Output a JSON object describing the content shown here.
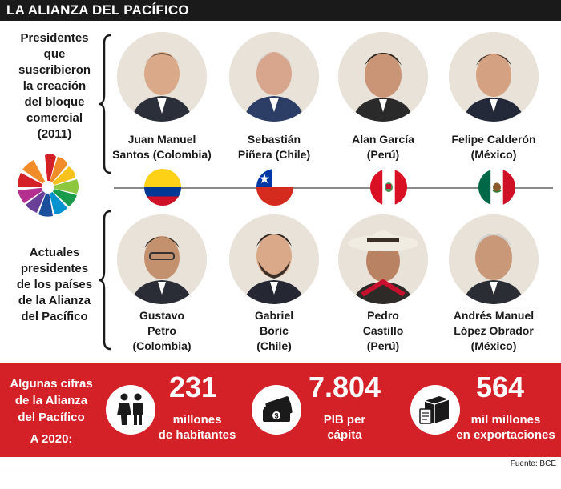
{
  "header": {
    "title": "LA ALIANZA DEL PACÍFICO"
  },
  "founders": {
    "label": [
      "Presidentes",
      "que suscribieron",
      "la creación",
      "del bloque",
      "comercial",
      "(2011)"
    ],
    "people": [
      {
        "name": [
          "Juan Manuel",
          "Santos (Colombia)"
        ]
      },
      {
        "name": [
          "Sebastián",
          "Piñera (Chile)"
        ]
      },
      {
        "name": [
          "Alan García",
          "(Perú)"
        ]
      },
      {
        "name": [
          "Felipe Calderón",
          "(México)"
        ]
      }
    ]
  },
  "current": {
    "label": [
      "Actuales",
      "presidentes",
      "de los países",
      "de la Alianza",
      "del Pacífico"
    ],
    "people": [
      {
        "name": [
          "Gustavo",
          "Petro",
          "(Colombia)"
        ]
      },
      {
        "name": [
          "Gabriel",
          "Boric",
          "(Chile)"
        ]
      },
      {
        "name": [
          "Pedro",
          "Castillo",
          "(Perú)"
        ]
      },
      {
        "name": [
          "Andrés Manuel",
          "López Obrador",
          "(México)"
        ]
      }
    ]
  },
  "flags": [
    {
      "country": "Colombia",
      "colors": [
        "#fcd116",
        "#003893",
        "#ce1126"
      ]
    },
    {
      "country": "Chile",
      "colors": [
        "#0039a6",
        "#ffffff",
        "#d52b1e"
      ]
    },
    {
      "country": "Perú",
      "colors": [
        "#d91023",
        "#ffffff",
        "#d91023"
      ]
    },
    {
      "country": "México",
      "colors": [
        "#006847",
        "#ffffff",
        "#ce1126"
      ]
    }
  ],
  "stats": {
    "lead": [
      "Algunas cifras",
      "de la Alianza",
      "del Pacífico",
      "A 2020:"
    ],
    "items": [
      {
        "icon": "people-icon",
        "value": "231",
        "desc": [
          "millones",
          "de habitantes"
        ]
      },
      {
        "icon": "money-icon",
        "value": "7.804",
        "desc": [
          "PIB per",
          "cápita"
        ]
      },
      {
        "icon": "export-box-icon",
        "value": "564",
        "desc": [
          "mil millones",
          "en exportaciones"
        ]
      }
    ]
  },
  "source": "Fuente: BCE",
  "colors": {
    "accent_red": "#d42027",
    "header_bg": "#1a1a1a"
  }
}
